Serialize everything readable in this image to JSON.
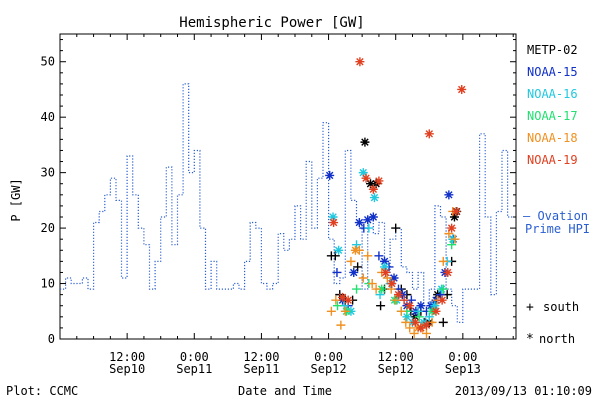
{
  "chart_data": {
    "type": "scatter",
    "title": "Hemispheric Power [GW]",
    "xlabel": "Date and Time",
    "ylabel": "P [GW]",
    "ylim": [
      0,
      55
    ],
    "yticks": [
      0,
      10,
      20,
      30,
      40,
      50
    ],
    "xlim_hours": [
      0,
      81.5
    ],
    "xticks": [
      {
        "h": 12,
        "time": "12:00",
        "date": "Sep10"
      },
      {
        "h": 24,
        "time": "0:00",
        "date": "Sep11"
      },
      {
        "h": 36,
        "time": "12:00",
        "date": "Sep11"
      },
      {
        "h": 48,
        "time": "0:00",
        "date": "Sep12"
      },
      {
        "h": 60,
        "time": "12:00",
        "date": "Sep12"
      },
      {
        "h": 72,
        "time": "0:00",
        "date": "Sep13"
      }
    ],
    "line_series": {
      "name": "Ovation Prime HPI",
      "label_lines": [
        "— Ovation",
        "Prime HPI"
      ],
      "color": "#2a5fd0",
      "step_hours": 1,
      "start_hour": 0,
      "values": [
        9,
        11,
        10,
        10,
        11,
        9,
        21,
        23,
        26,
        29,
        25,
        11,
        33,
        26,
        20,
        17,
        9,
        14,
        22,
        31,
        17,
        26,
        46,
        30,
        34,
        20,
        9,
        14,
        9,
        9,
        9,
        10,
        9,
        14,
        21,
        20,
        10,
        9,
        10,
        19,
        16,
        18,
        24,
        18,
        32,
        20,
        29,
        39,
        18,
        10,
        11,
        34,
        25,
        21,
        9,
        22,
        19,
        21,
        11,
        18,
        20,
        13,
        12,
        9,
        12,
        6,
        9,
        24,
        22,
        9,
        6,
        3,
        9,
        9,
        9,
        37,
        22,
        8,
        23,
        34,
        22
      ]
    },
    "scatter_series": [
      {
        "name": "METP-02",
        "color": "#000000",
        "points": [
          [
            48.5,
            15,
            "s"
          ],
          [
            49.2,
            15,
            "s"
          ],
          [
            50.0,
            8,
            "s"
          ],
          [
            51.0,
            7,
            "s"
          ],
          [
            52.3,
            7,
            "s"
          ],
          [
            53.2,
            13,
            "s"
          ],
          [
            54.5,
            35.5,
            "n"
          ],
          [
            55.5,
            28,
            "n"
          ],
          [
            56.5,
            28,
            "n"
          ],
          [
            57.3,
            6,
            "s"
          ],
          [
            58.0,
            9,
            "s"
          ],
          [
            59.2,
            10,
            "s"
          ],
          [
            60.0,
            20,
            "s"
          ],
          [
            61.0,
            9,
            "s"
          ],
          [
            62.0,
            8,
            "s"
          ],
          [
            62.7,
            5,
            "s"
          ],
          [
            63.5,
            4,
            "n"
          ],
          [
            64.5,
            5,
            "s"
          ],
          [
            65.2,
            3,
            "s"
          ],
          [
            66.0,
            3,
            "n"
          ],
          [
            66.7,
            6,
            "s"
          ],
          [
            67.5,
            8,
            "n"
          ],
          [
            68.5,
            3,
            "s"
          ],
          [
            69.2,
            8,
            "s"
          ],
          [
            70.0,
            14,
            "s"
          ],
          [
            70.5,
            22,
            "n"
          ],
          [
            70.9,
            23,
            "n"
          ]
        ]
      },
      {
        "name": "NOAA-15",
        "color": "#1030c8",
        "points": [
          [
            48.2,
            29.5,
            "n"
          ],
          [
            49.5,
            12,
            "s"
          ],
          [
            50.5,
            7,
            "n"
          ],
          [
            51.5,
            6,
            "s"
          ],
          [
            52.5,
            12,
            "n"
          ],
          [
            53.5,
            21,
            "n"
          ],
          [
            54.3,
            20,
            "s"
          ],
          [
            55.0,
            21.5,
            "n"
          ],
          [
            56.0,
            22,
            "n"
          ],
          [
            57.0,
            15,
            "s"
          ],
          [
            58.0,
            14,
            "n"
          ],
          [
            58.8,
            13,
            "s"
          ],
          [
            59.7,
            11,
            "n"
          ],
          [
            60.5,
            9,
            "s"
          ],
          [
            61.2,
            8,
            "n"
          ],
          [
            62.0,
            6,
            "n"
          ],
          [
            62.8,
            7,
            "s"
          ],
          [
            63.6,
            5,
            "n"
          ],
          [
            64.5,
            6,
            "n"
          ],
          [
            65.5,
            5,
            "s"
          ],
          [
            66.3,
            6,
            "n"
          ],
          [
            67.2,
            7,
            "n"
          ],
          [
            68.0,
            8,
            "s"
          ],
          [
            68.8,
            12,
            "n"
          ],
          [
            69.5,
            26,
            "n"
          ],
          [
            70.3,
            18,
            "n"
          ]
        ]
      },
      {
        "name": "NOAA-16",
        "color": "#20c8e0",
        "points": [
          [
            48.8,
            22,
            "n"
          ],
          [
            49.8,
            16,
            "n"
          ],
          [
            50.8,
            6,
            "s"
          ],
          [
            52.0,
            5,
            "n"
          ],
          [
            53.0,
            17,
            "s"
          ],
          [
            54.2,
            30,
            "n"
          ],
          [
            55.2,
            20,
            "s"
          ],
          [
            56.2,
            25.5,
            "n"
          ],
          [
            57.2,
            8,
            "s"
          ],
          [
            58.0,
            13,
            "n"
          ],
          [
            59.0,
            10,
            "s"
          ],
          [
            60.2,
            7,
            "n"
          ],
          [
            61.0,
            5,
            "s"
          ],
          [
            62.0,
            4,
            "n"
          ],
          [
            63.0,
            3,
            "n"
          ],
          [
            64.0,
            5,
            "s"
          ],
          [
            65.0,
            3,
            "n"
          ],
          [
            66.0,
            4,
            "s"
          ],
          [
            67.0,
            6,
            "n"
          ],
          [
            68.2,
            9,
            "n"
          ],
          [
            69.2,
            14,
            "s"
          ],
          [
            70.2,
            18,
            "n"
          ]
        ]
      },
      {
        "name": "NOAA-17",
        "color": "#20e070",
        "points": [
          [
            49.6,
            6,
            "s"
          ],
          [
            51.2,
            5,
            "n"
          ],
          [
            53.0,
            9,
            "s"
          ],
          [
            55.2,
            10,
            "s"
          ],
          [
            57.5,
            9,
            "n"
          ],
          [
            59.8,
            7,
            "n"
          ],
          [
            62.0,
            5,
            "s"
          ],
          [
            64.2,
            4,
            "s"
          ],
          [
            66.5,
            5,
            "n"
          ],
          [
            68.5,
            9,
            "s"
          ],
          [
            70.0,
            17,
            "s"
          ]
        ]
      },
      {
        "name": "NOAA-18",
        "color": "#f09020",
        "points": [
          [
            48.5,
            5,
            "s"
          ],
          [
            49.3,
            7,
            "s"
          ],
          [
            50.2,
            2.5,
            "s"
          ],
          [
            51.0,
            5,
            "s"
          ],
          [
            52.0,
            14,
            "s"
          ],
          [
            52.8,
            16,
            "n"
          ],
          [
            53.5,
            16,
            "s"
          ],
          [
            54.2,
            11,
            "s"
          ],
          [
            55.0,
            15,
            "s"
          ],
          [
            55.8,
            10,
            "s"
          ],
          [
            56.5,
            9,
            "s"
          ],
          [
            57.5,
            12,
            "s"
          ],
          [
            58.5,
            11,
            "s"
          ],
          [
            59.2,
            9,
            "s"
          ],
          [
            60.0,
            7,
            "s"
          ],
          [
            61.0,
            5,
            "s"
          ],
          [
            61.8,
            3,
            "s"
          ],
          [
            62.5,
            2,
            "s"
          ],
          [
            63.3,
            1,
            "s"
          ],
          [
            64.0,
            2,
            "n"
          ],
          [
            64.8,
            2,
            "s"
          ],
          [
            65.5,
            1,
            "s"
          ],
          [
            66.5,
            3,
            "s"
          ],
          [
            67.5,
            7,
            "s"
          ],
          [
            68.5,
            14,
            "s"
          ],
          [
            69.5,
            19,
            "s"
          ],
          [
            70.2,
            23,
            "s"
          ],
          [
            70.6,
            18,
            "s"
          ]
        ]
      },
      {
        "name": "NOAA-19",
        "color": "#e04020",
        "points": [
          [
            48.9,
            21,
            "n"
          ],
          [
            50.5,
            7.5,
            "n"
          ],
          [
            51.5,
            7,
            "n"
          ],
          [
            53.6,
            50,
            "n"
          ],
          [
            54.7,
            29,
            "n"
          ],
          [
            56.0,
            27,
            "n"
          ],
          [
            57.0,
            28.5,
            "n"
          ],
          [
            58.2,
            12,
            "n"
          ],
          [
            59.3,
            10,
            "n"
          ],
          [
            60.5,
            8,
            "n"
          ],
          [
            61.5,
            7,
            "s"
          ],
          [
            62.5,
            6,
            "n"
          ],
          [
            63.5,
            3,
            "n"
          ],
          [
            64.5,
            2,
            "n"
          ],
          [
            65.5,
            2.5,
            "n"
          ],
          [
            66.0,
            37,
            "n"
          ],
          [
            67.2,
            5,
            "n"
          ],
          [
            68.3,
            7,
            "n"
          ],
          [
            69.3,
            12,
            "n"
          ],
          [
            70.0,
            20,
            "n"
          ],
          [
            70.8,
            23,
            "n"
          ],
          [
            71.8,
            45,
            "n"
          ]
        ]
      }
    ],
    "markers": {
      "south_symbol": "+",
      "south_label": "south",
      "north_symbol": "*",
      "north_label": "north"
    }
  },
  "footer": {
    "left": "Plot: CCMC",
    "center": "Date and Time",
    "right": "2013/09/13 01:10:09"
  }
}
